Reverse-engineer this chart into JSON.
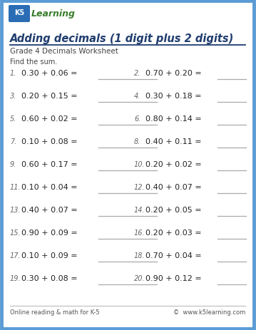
{
  "title": "Adding decimals (1 digit plus 2 digits)",
  "subtitle": "Grade 4 Decimals Worksheet",
  "instruction": "Find the sum.",
  "problems": [
    [
      "0.30 + 0.06 =",
      "0.70 + 0.20 ="
    ],
    [
      "0.20 + 0.15 =",
      "0.30 + 0.18 ="
    ],
    [
      "0.60 + 0.02 =",
      "0.80 + 0.14 ="
    ],
    [
      "0.10 + 0.08 =",
      "0.40 + 0.11 ="
    ],
    [
      "0.60 + 0.17 =",
      "0.20 + 0.02 ="
    ],
    [
      "0.10 + 0.04 =",
      "0.40 + 0.07 ="
    ],
    [
      "0.40 + 0.07 =",
      "0.20 + 0.05 ="
    ],
    [
      "0.90 + 0.09 =",
      "0.20 + 0.03 ="
    ],
    [
      "0.10 + 0.09 =",
      "0.70 + 0.04 ="
    ],
    [
      "0.30 + 0.08 =",
      "0.90 + 0.12 ="
    ]
  ],
  "problem_numbers_left": [
    1,
    3,
    5,
    7,
    9,
    11,
    13,
    15,
    17,
    19
  ],
  "problem_numbers_right": [
    2,
    4,
    6,
    8,
    10,
    12,
    14,
    16,
    18,
    20
  ],
  "footer_left": "Online reading & math for K-5",
  "footer_right": "©  www.k5learning.com",
  "bg_color": "#ffffff",
  "border_color": "#5b9bd5",
  "title_color": "#1f3d6e",
  "subtitle_color": "#444444",
  "problem_color": "#222222",
  "number_color": "#666666",
  "line_color": "#aaaaaa",
  "footer_color": "#555555",
  "title_underline_color": "#1f3d6e",
  "logo_green": "#3a7d2c",
  "logo_blue": "#2a6db5"
}
